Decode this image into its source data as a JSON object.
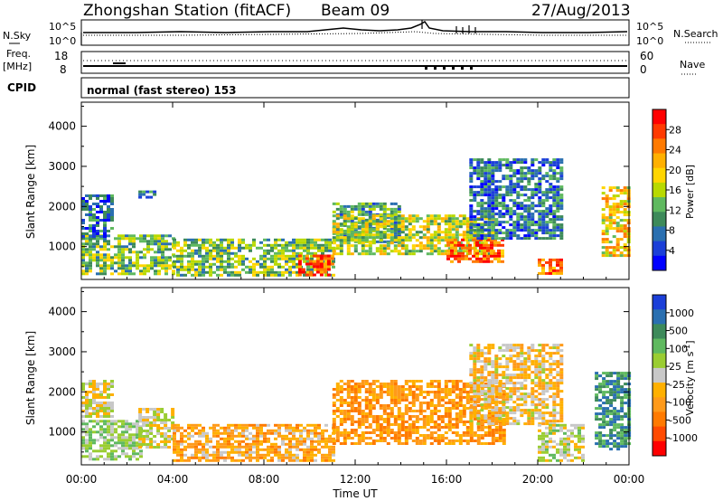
{
  "header": {
    "station": "Zhongshan Station (fitACF)",
    "beam": "Beam 09",
    "date": "27/Aug/2013"
  },
  "nsky_panel": {
    "left_label": "N.Sky",
    "right_label": "N.Search",
    "left_ticks": [
      "10^5",
      "10^0"
    ],
    "right_ticks": [
      "10^5",
      "10^0"
    ]
  },
  "freq_panel": {
    "left_label_line1": "Freq.",
    "left_label_line2": "[MHz]",
    "right_label": "Nave",
    "left_ticks": [
      "18",
      "8"
    ],
    "right_ticks": [
      "60",
      "0"
    ]
  },
  "cpid_panel": {
    "label": "CPID",
    "text": "normal (fast stereo) 153"
  },
  "x_axis": {
    "label": "Time UT",
    "ticks": [
      "00:00",
      "04:00",
      "08:00",
      "12:00",
      "16:00",
      "20:00",
      "00:00"
    ]
  },
  "chart_data": [
    {
      "type": "heatmap",
      "name": "power",
      "ylabel": "Slant Range [km]",
      "ylim": [
        180,
        4600
      ],
      "yticks": [
        1000,
        2000,
        3000,
        4000
      ],
      "xlim": [
        0,
        24
      ],
      "colorbar": {
        "label": "Power [dB]",
        "ticks": [
          "28",
          "24",
          "20",
          "16",
          "12",
          "8",
          "4"
        ],
        "colors": [
          "#ff0000",
          "#ff3a00",
          "#ff7a00",
          "#ffb000",
          "#ffd500",
          "#b8d900",
          "#5fb95f",
          "#3d8a5a",
          "#2a6fb0",
          "#1b3fd8",
          "#0000ff"
        ]
      },
      "echo_regions": [
        {
          "t": [
            0.0,
            4.0
          ],
          "range_km": [
            300,
            1300
          ],
          "dB": 14
        },
        {
          "t": [
            0.0,
            1.3
          ],
          "range_km": [
            1200,
            2300
          ],
          "dB": 8
        },
        {
          "t": [
            2.5,
            3.2
          ],
          "range_km": [
            2200,
            2400
          ],
          "dB": 10
        },
        {
          "t": [
            4.0,
            11.0
          ],
          "range_km": [
            300,
            1200
          ],
          "dB": 14
        },
        {
          "t": [
            9.5,
            11.0
          ],
          "range_km": [
            280,
            800
          ],
          "dB": 27
        },
        {
          "t": [
            11.0,
            14.0
          ],
          "range_km": [
            1100,
            2100
          ],
          "dB": 12
        },
        {
          "t": [
            11.0,
            18.0
          ],
          "range_km": [
            800,
            1800
          ],
          "dB": 17
        },
        {
          "t": [
            16.0,
            18.5
          ],
          "range_km": [
            600,
            1200
          ],
          "dB": 26
        },
        {
          "t": [
            17.0,
            21.0
          ],
          "range_km": [
            1200,
            3200
          ],
          "dB": 9
        },
        {
          "t": [
            20.0,
            21.0
          ],
          "range_km": [
            300,
            700
          ],
          "dB": 25
        },
        {
          "t": [
            22.8,
            24.0
          ],
          "range_km": [
            800,
            2500
          ],
          "dB": 20
        }
      ]
    },
    {
      "type": "heatmap",
      "name": "velocity",
      "ylabel": "Slant Range [km]",
      "ylim": [
        180,
        4600
      ],
      "yticks": [
        1000,
        2000,
        3000,
        4000
      ],
      "xlim": [
        0,
        24
      ],
      "colorbar": {
        "label": "Velocity [m s^-1]",
        "ticks": [
          "1000",
          "500",
          "100",
          "25",
          "-25",
          "-100",
          "-500",
          "-1000"
        ],
        "colors": [
          "#1b3fd8",
          "#2a6fb0",
          "#3d8a5a",
          "#5fb95f",
          "#9acd32",
          "#c8c8c8",
          "#ffb000",
          "#ff9a1a",
          "#ff7a00",
          "#ff4a00",
          "#ff0000"
        ]
      },
      "echo_regions": [
        {
          "t": [
            0.0,
            2.6
          ],
          "range_km": [
            300,
            1300
          ],
          "m_per_s": 200
        },
        {
          "t": [
            0.0,
            1.3
          ],
          "range_km": [
            1400,
            2300
          ],
          "m_per_s": 0
        },
        {
          "t": [
            2.5,
            4.0
          ],
          "range_km": [
            600,
            1600
          ],
          "m_per_s": 0
        },
        {
          "t": [
            4.0,
            11.0
          ],
          "range_km": [
            300,
            1200
          ],
          "m_per_s": -300
        },
        {
          "t": [
            11.0,
            18.5
          ],
          "range_km": [
            700,
            2300
          ],
          "m_per_s": -400
        },
        {
          "t": [
            17.0,
            21.0
          ],
          "range_km": [
            1200,
            3200
          ],
          "m_per_s": -150
        },
        {
          "t": [
            20.0,
            22.0
          ],
          "range_km": [
            300,
            1200
          ],
          "m_per_s": 100
        },
        {
          "t": [
            22.5,
            24.0
          ],
          "range_km": [
            600,
            2500
          ],
          "m_per_s": 600
        }
      ]
    }
  ]
}
